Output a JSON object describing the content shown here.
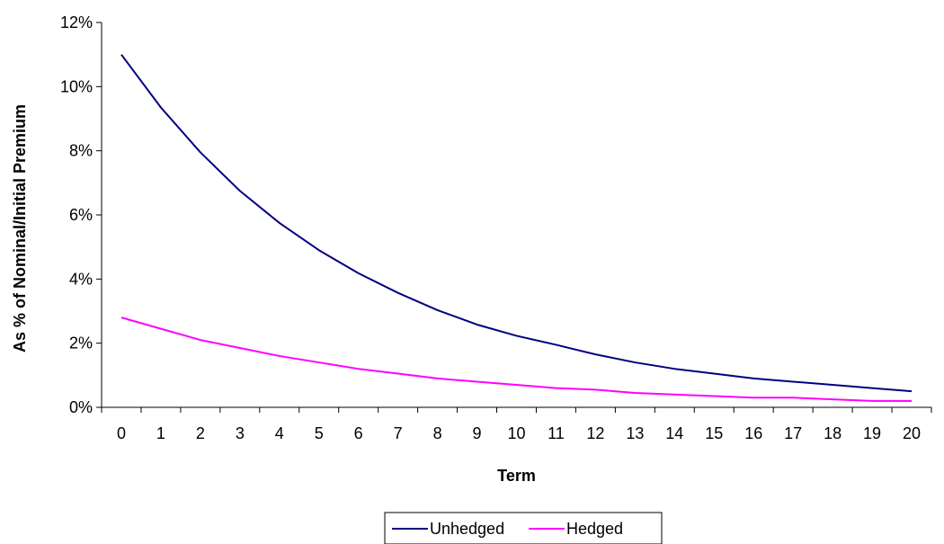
{
  "chart_data": {
    "type": "line",
    "x": [
      0,
      1,
      2,
      3,
      4,
      5,
      6,
      7,
      8,
      9,
      10,
      11,
      12,
      13,
      14,
      15,
      16,
      17,
      18,
      19,
      20
    ],
    "xlabel": "Term",
    "ylabel": "As % of Nominal/Initial Premium",
    "ylim": [
      0,
      12
    ],
    "yticks": [
      0,
      2,
      4,
      6,
      8,
      10,
      12
    ],
    "ytick_labels": [
      "0%",
      "2%",
      "4%",
      "6%",
      "8%",
      "10%",
      "12%"
    ],
    "grid": false,
    "legend_position": "bottom",
    "series": [
      {
        "name": "Unhedged",
        "color": "#000080",
        "values": [
          11.0,
          9.35,
          7.95,
          6.75,
          5.75,
          4.9,
          4.18,
          3.57,
          3.03,
          2.58,
          2.23,
          1.95,
          1.65,
          1.4,
          1.2,
          1.05,
          0.9,
          0.8,
          0.7,
          0.6,
          0.5
        ]
      },
      {
        "name": "Hedged",
        "color": "#ff00ff",
        "values": [
          2.8,
          2.45,
          2.1,
          1.85,
          1.6,
          1.4,
          1.2,
          1.05,
          0.9,
          0.8,
          0.7,
          0.6,
          0.55,
          0.45,
          0.4,
          0.35,
          0.3,
          0.3,
          0.25,
          0.2,
          0.2
        ]
      }
    ]
  }
}
